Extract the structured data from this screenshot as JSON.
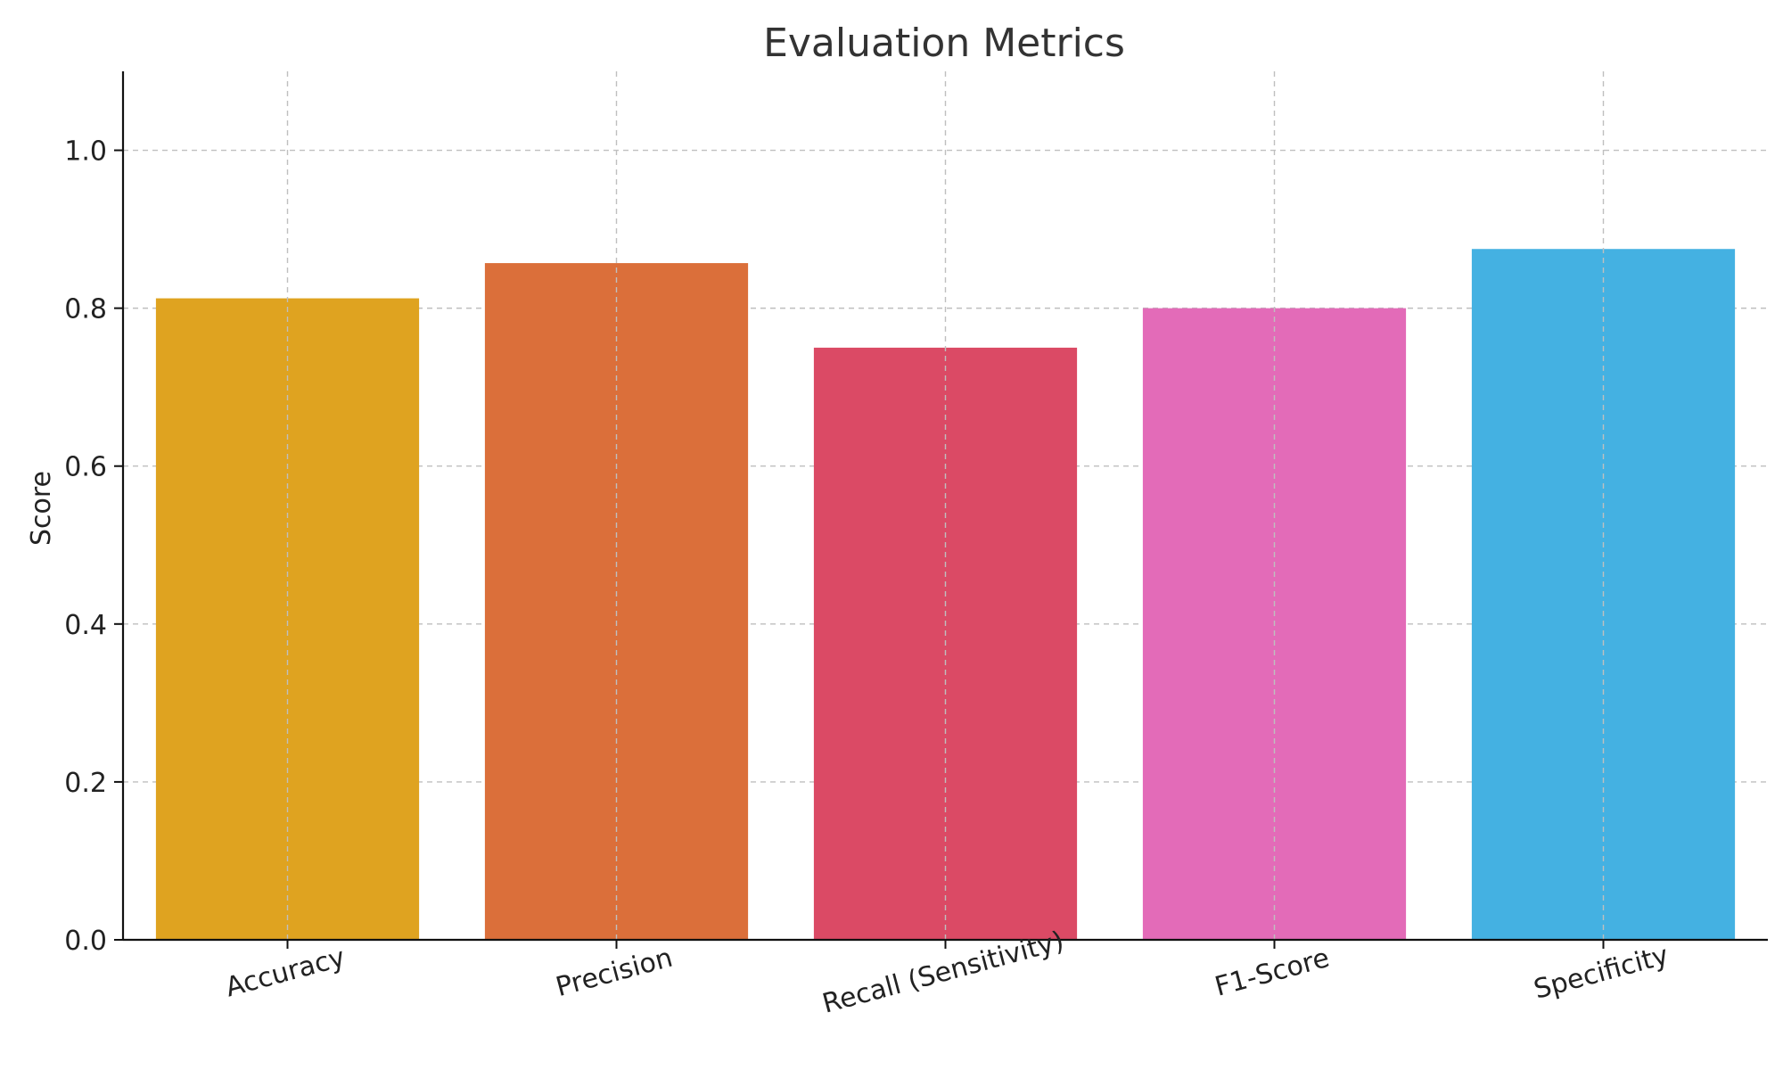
{
  "chart_data": {
    "type": "bar",
    "title": "Evaluation Metrics",
    "xlabel": "",
    "ylabel": "Score",
    "categories": [
      "Accuracy",
      "Precision",
      "Recall (Sensitivity)",
      "F1-Score",
      "Specificity"
    ],
    "values": [
      0.8125,
      0.8571,
      0.75,
      0.8,
      0.875
    ],
    "colors": [
      "#DFA320",
      "#DB6F3A",
      "#DB4A65",
      "#E36BB8",
      "#44B1E2"
    ],
    "ylim": [
      0,
      1.1
    ],
    "yticks": [
      0.0,
      0.2,
      0.4,
      0.6,
      0.8,
      1.0
    ],
    "ytick_labels": [
      "0.0",
      "0.2",
      "0.4",
      "0.6",
      "0.8",
      "1.0"
    ],
    "grid": true,
    "legend": "none"
  }
}
